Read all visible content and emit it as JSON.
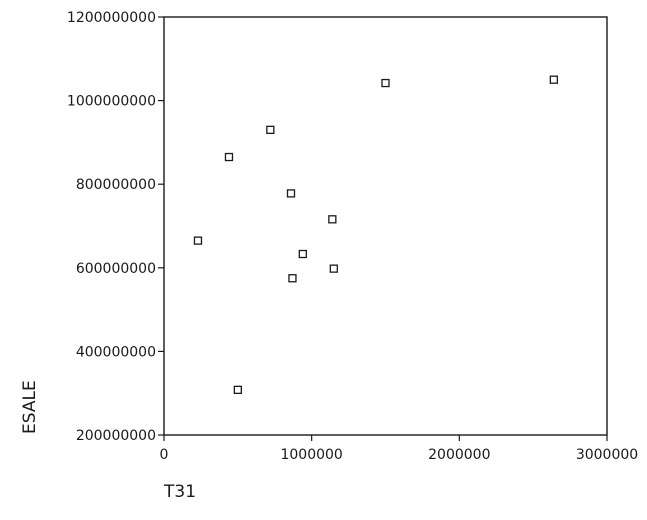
{
  "chart_data": {
    "type": "scatter",
    "title": "",
    "xlabel": "T31",
    "ylabel": "ESALE",
    "xlim": [
      0,
      3000000
    ],
    "ylim": [
      200000000,
      1200000000
    ],
    "x_ticks": [
      0,
      1000000,
      2000000,
      3000000
    ],
    "x_tick_labels": [
      "0",
      "1000000",
      "2000000",
      "3000000"
    ],
    "y_ticks": [
      200000000,
      400000000,
      600000000,
      800000000,
      1000000000,
      1200000000
    ],
    "y_tick_labels": [
      "200000000",
      "400000000",
      "600000000",
      "800000000",
      "1000000000",
      "1200000000"
    ],
    "grid": false,
    "legend": "none",
    "marker": "open-square",
    "series": [
      {
        "points": [
          {
            "x": 230000,
            "y": 665000000
          },
          {
            "x": 440000,
            "y": 865000000
          },
          {
            "x": 500000,
            "y": 308000000
          },
          {
            "x": 720000,
            "y": 930000000
          },
          {
            "x": 860000,
            "y": 778000000
          },
          {
            "x": 870000,
            "y": 575000000
          },
          {
            "x": 940000,
            "y": 633000000
          },
          {
            "x": 1140000,
            "y": 716000000
          },
          {
            "x": 1150000,
            "y": 598000000
          },
          {
            "x": 1500000,
            "y": 1042000000
          },
          {
            "x": 2640000,
            "y": 1050000000
          }
        ]
      }
    ]
  }
}
